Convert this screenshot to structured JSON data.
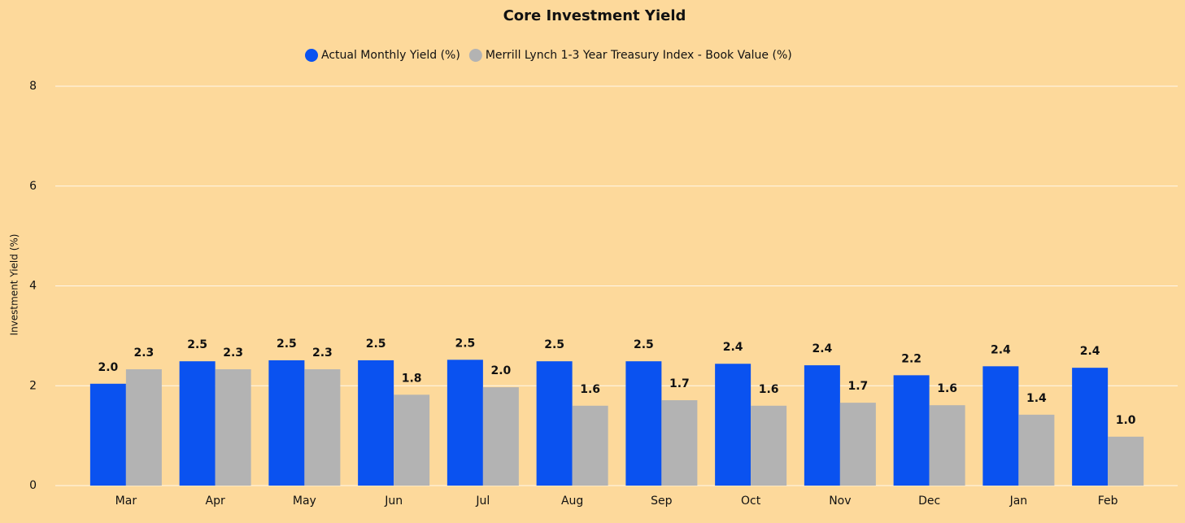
{
  "chart_data": {
    "type": "bar",
    "title": "Core Investment Yield",
    "y_label": "Investment Yield (%)",
    "categories": [
      "Mar",
      "Apr",
      "May",
      "Jun",
      "Jul",
      "Aug",
      "Sep",
      "Oct",
      "Nov",
      "Dec",
      "Jan",
      "Feb"
    ],
    "series": [
      {
        "name": "Actual Monthly Yield (%)",
        "color": "#0a52f0",
        "values": [
          2.04,
          2.49,
          2.51,
          2.51,
          2.52,
          2.49,
          2.49,
          2.44,
          2.41,
          2.21,
          2.39,
          2.36
        ],
        "value_labels": [
          "2.0",
          "2.5",
          "2.5",
          "2.5",
          "2.5",
          "2.5",
          "2.5",
          "2.4",
          "2.4",
          "2.2",
          "2.4",
          "2.4"
        ]
      },
      {
        "name": "Merrill Lynch 1-3 Year Treasury Index - Book Value (%)",
        "color": "#b3b3b3",
        "values": [
          2.33,
          2.33,
          2.33,
          1.82,
          1.97,
          1.6,
          1.71,
          1.6,
          1.66,
          1.61,
          1.42,
          0.98
        ],
        "value_labels": [
          "2.3",
          "2.3",
          "2.3",
          "1.8",
          "2.0",
          "1.6",
          "1.7",
          "1.6",
          "1.7",
          "1.6",
          "1.4",
          "1.0"
        ]
      }
    ],
    "ylim": [
      0,
      8
    ],
    "yticks": [
      0,
      2,
      4,
      6,
      8
    ],
    "grid": true,
    "legend": "top"
  }
}
